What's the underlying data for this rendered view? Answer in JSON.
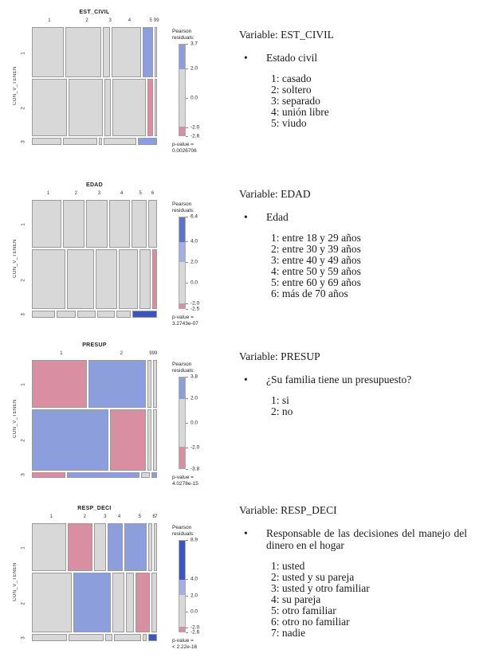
{
  "bullet_char": "•",
  "colors": {
    "cell_gray": "#d8d8d8",
    "cell_blue": "#8c9edb",
    "cell_pink": "#d98fa1",
    "cell_darkblue": "#3a55c6",
    "cell_blue_mid": "#5b73cd",
    "cell_blue_light": "#a3afe2"
  },
  "chart_data": [
    {
      "type": "mosaic",
      "title": "EST_CIVIL",
      "ylabel": "CON_V_TENEN",
      "x_label_categories": [
        "1",
        "2",
        "3",
        "4",
        "5",
        "99"
      ],
      "rows": [
        {
          "label": "1",
          "height": 0.44,
          "cells": [
            {
              "w": 0.28,
              "color": "gray"
            },
            {
              "w": 0.32,
              "color": "gray"
            },
            {
              "w": 0.05,
              "color": "gray"
            },
            {
              "w": 0.26,
              "color": "gray"
            },
            {
              "w": 0.08,
              "color": "blue"
            },
            {
              "w": 0.01,
              "color": "gray"
            }
          ]
        },
        {
          "label": "2",
          "height": 0.5,
          "cells": [
            {
              "w": 0.31,
              "color": "gray"
            },
            {
              "w": 0.305,
              "color": "gray"
            },
            {
              "w": 0.045,
              "color": "gray"
            },
            {
              "w": 0.295,
              "color": "gray"
            },
            {
              "w": 0.035,
              "color": "pink"
            },
            {
              "w": 0.01,
              "color": "gray"
            }
          ]
        },
        {
          "label": "3",
          "height": 0.06,
          "cells": [
            {
              "w": 0.25,
              "color": "gray"
            },
            {
              "w": 0.3,
              "color": "gray"
            },
            {
              "w": 0.01,
              "color": "gray"
            },
            {
              "w": 0.285,
              "color": "gray"
            },
            {
              "w": 0.155,
              "color": "blue"
            }
          ]
        }
      ],
      "legend": {
        "title": [
          "Pearson",
          "residuals:"
        ],
        "max": 3.7,
        "min": -2.6,
        "ticks": [
          "3.7",
          "2.0",
          "0.0",
          "-2.0",
          "-2.6"
        ],
        "segments": [
          {
            "from": 3.7,
            "to": 2.0,
            "color": "blue"
          },
          {
            "from": 2.0,
            "to": -2.0,
            "color": "gray"
          },
          {
            "from": -2.0,
            "to": -2.6,
            "color": "pink"
          }
        ],
        "p_value": [
          "p-value =",
          "0.0026706"
        ]
      }
    },
    {
      "type": "mosaic",
      "title": "EDAD",
      "ylabel": "CON_V_TENEN",
      "x_label_categories": [
        "1",
        "2",
        "3",
        "4",
        "5",
        "6"
      ],
      "rows": [
        {
          "label": "1",
          "height": 0.42,
          "cells": [
            {
              "w": 0.26,
              "color": "gray"
            },
            {
              "w": 0.185,
              "color": "gray"
            },
            {
              "w": 0.185,
              "color": "gray"
            },
            {
              "w": 0.175,
              "color": "gray"
            },
            {
              "w": 0.125,
              "color": "gray"
            },
            {
              "w": 0.07,
              "color": "gray"
            }
          ]
        },
        {
          "label": "2",
          "height": 0.52,
          "cells": [
            {
              "w": 0.295,
              "color": "gray"
            },
            {
              "w": 0.235,
              "color": "gray"
            },
            {
              "w": 0.19,
              "color": "gray"
            },
            {
              "w": 0.16,
              "color": "gray"
            },
            {
              "w": 0.09,
              "color": "gray"
            },
            {
              "w": 0.03,
              "color": "pink"
            }
          ]
        },
        {
          "label": "3",
          "height": 0.06,
          "cells": [
            {
              "w": 0.2,
              "color": "gray"
            },
            {
              "w": 0.165,
              "color": "gray"
            },
            {
              "w": 0.155,
              "color": "gray"
            },
            {
              "w": 0.15,
              "color": "gray"
            },
            {
              "w": 0.115,
              "color": "gray"
            },
            {
              "w": 0.215,
              "color": "darkblue"
            }
          ]
        }
      ],
      "legend": {
        "title": [
          "Pearson",
          "residuals:"
        ],
        "max": 6.4,
        "min": -2.5,
        "ticks": [
          "6.4",
          "4.0",
          "2.0",
          "0.0",
          "-2.0",
          "-2.5"
        ],
        "segments": [
          {
            "from": 6.4,
            "to": 4.0,
            "color": "blue_mid"
          },
          {
            "from": 4.0,
            "to": 2.0,
            "color": "blue_light"
          },
          {
            "from": 2.0,
            "to": -2.0,
            "color": "gray"
          },
          {
            "from": -2.0,
            "to": -2.5,
            "color": "pink"
          }
        ],
        "p_value": [
          "p-value =",
          "3.2743e-07"
        ]
      }
    },
    {
      "type": "mosaic",
      "title": "PRESUP",
      "ylabel": "CON_V_TENEN",
      "x_label_categories": [
        "1",
        "2",
        "999",
        ""
      ],
      "rows": [
        {
          "label": "1",
          "height": 0.42,
          "cells": [
            {
              "w": 0.47,
              "color": "pink"
            },
            {
              "w": 0.49,
              "color": "blue"
            },
            {
              "w": 0.02,
              "color": "gray"
            },
            {
              "w": 0.02,
              "color": "gray"
            }
          ]
        },
        {
          "label": "2",
          "height": 0.53,
          "cells": [
            {
              "w": 0.66,
              "color": "blue"
            },
            {
              "w": 0.3,
              "color": "pink"
            },
            {
              "w": 0.02,
              "color": "gray"
            },
            {
              "w": 0.02,
              "color": "gray"
            }
          ]
        },
        {
          "label": "3",
          "height": 0.05,
          "cells": [
            {
              "w": 0.28,
              "color": "pink"
            },
            {
              "w": 0.625,
              "color": "blue"
            },
            {
              "w": 0.06,
              "color": "gray"
            },
            {
              "w": 0.035,
              "color": "blue"
            }
          ]
        }
      ],
      "legend": {
        "title": [
          "Pearson",
          "residuals:"
        ],
        "max": 3.8,
        "min": -3.8,
        "ticks": [
          "3.8",
          "2.0",
          "0.0",
          "-2.0",
          "-3.8"
        ],
        "segments": [
          {
            "from": 3.8,
            "to": 2.0,
            "color": "blue"
          },
          {
            "from": 2.0,
            "to": -2.0,
            "color": "gray"
          },
          {
            "from": -2.0,
            "to": -3.8,
            "color": "pink"
          }
        ],
        "p_value": [
          "p-value =",
          "4.0278e-15"
        ]
      }
    },
    {
      "type": "mosaic",
      "title": "RESP_DECI",
      "ylabel": "CON_V_TENEN",
      "x_label_categories": [
        "1",
        "2",
        "3",
        "4",
        "5",
        "6",
        "7"
      ],
      "rows": [
        {
          "label": "1",
          "height": 0.42,
          "cells": [
            {
              "w": 0.31,
              "color": "gray"
            },
            {
              "w": 0.225,
              "color": "pink"
            },
            {
              "w": 0.1,
              "color": "gray"
            },
            {
              "w": 0.125,
              "color": "blue"
            },
            {
              "w": 0.205,
              "color": "blue"
            },
            {
              "w": 0.02,
              "color": "gray"
            },
            {
              "w": 0.015,
              "color": "gray"
            }
          ]
        },
        {
          "label": "2",
          "height": 0.52,
          "cells": [
            {
              "w": 0.357,
              "color": "gray"
            },
            {
              "w": 0.333,
              "color": "blue"
            },
            {
              "w": 0.095,
              "color": "gray"
            },
            {
              "w": 0.06,
              "color": "gray"
            },
            {
              "w": 0.119,
              "color": "pink"
            },
            {
              "w": 0.036,
              "color": "gray"
            }
          ]
        },
        {
          "label": "3",
          "height": 0.06,
          "cells": [
            {
              "w": 0.31,
              "color": "gray"
            },
            {
              "w": 0.31,
              "color": "gray"
            },
            {
              "w": 0.055,
              "color": "gray"
            },
            {
              "w": 0.235,
              "color": "gray"
            },
            {
              "w": 0.02,
              "color": "gray"
            },
            {
              "w": 0.07,
              "color": "darkblue"
            }
          ]
        }
      ],
      "legend": {
        "title": [
          "Pearson",
          "residuals:"
        ],
        "max": 8.9,
        "min": -2.6,
        "ticks": [
          "8.9",
          "4.0",
          "2.0",
          "0.0",
          "-2.0",
          "-2.6"
        ],
        "segments": [
          {
            "from": 8.9,
            "to": 4.0,
            "color": "darkblue"
          },
          {
            "from": 4.0,
            "to": 2.0,
            "color": "blue_light"
          },
          {
            "from": 2.0,
            "to": -2.0,
            "color": "gray"
          },
          {
            "from": -2.0,
            "to": -2.6,
            "color": "pink"
          }
        ],
        "p_value": [
          "p-value =",
          "< 2.22e-16"
        ]
      }
    }
  ],
  "descriptions": [
    {
      "heading": "Variable: EST_CIVIL",
      "bullet": "Estado civil",
      "levels": [
        "1: casado",
        "2: soltero",
        "3: separado",
        "4: unión libre",
        "5: viudo"
      ]
    },
    {
      "heading": "Variable: EDAD",
      "bullet": "Edad",
      "levels": [
        "1: entre 18 y 29 años",
        "2: entre 30 y 39 años",
        "3: entre 40 y 49 años",
        "4: entre 50 y 59 años",
        "5: entre 60 y 69 años",
        "6: más de 70 años"
      ]
    },
    {
      "heading": "Variable: PRESUP",
      "bullet": "¿Su familia tiene un presupuesto?",
      "levels": [
        "1: si",
        "2: no"
      ]
    },
    {
      "heading": "Variable: RESP_DECI",
      "bullet": "Responsable de las decisiones del manejo del dinero en el hogar",
      "levels": [
        "1: usted",
        "2: usted y su pareja",
        "3: usted y otro familiar",
        "4: su pareja",
        "5: otro familiar",
        "6: otro no familiar",
        "7: nadie"
      ]
    }
  ]
}
